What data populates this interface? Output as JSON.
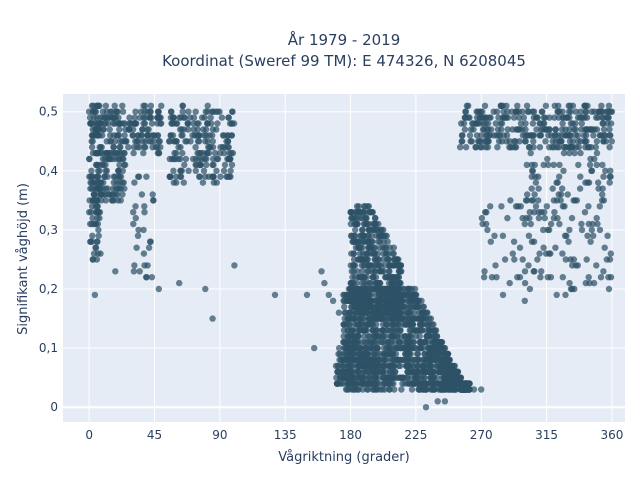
{
  "chart_data": {
    "type": "scatter",
    "title": "År 1979 - 2019",
    "subtitle": "Koordinat (Sweref 99 TM): E 474326, N 6208045",
    "xlabel": "Vågriktning (grader)",
    "ylabel": "Signifikant våghöjd (m)",
    "xlim": [
      -18,
      369
    ],
    "ylim": [
      -0.025,
      0.53
    ],
    "x_ticks": [
      0,
      45,
      90,
      135,
      180,
      225,
      270,
      315,
      360
    ],
    "x_tick_labels": [
      "0",
      "45",
      "90",
      "135",
      "180",
      "225",
      "270",
      "315",
      "360"
    ],
    "y_ticks": [
      0,
      0.1,
      0.2,
      0.3,
      0.4,
      0.5
    ],
    "y_tick_labels": [
      "0",
      "0,1",
      "0,2",
      "0,3",
      "0,4",
      "0,5"
    ],
    "grid": true,
    "marker_color": "#2e5266",
    "background_color": "#e5ecf6",
    "clusters": [
      {
        "x_range": [
          0,
          8
        ],
        "y_range": [
          0.25,
          0.51
        ],
        "n": 120
      },
      {
        "x_range": [
          5,
          25
        ],
        "y_range": [
          0.35,
          0.51
        ],
        "n": 160
      },
      {
        "x_range": [
          25,
          50
        ],
        "y_range": [
          0.43,
          0.51
        ],
        "n": 90
      },
      {
        "x_range": [
          55,
          100
        ],
        "y_range": [
          0.38,
          0.51
        ],
        "n": 200
      },
      {
        "x_range": [
          30,
          45
        ],
        "y_range": [
          0.22,
          0.4
        ],
        "n": 30
      },
      {
        "x_range": [
          255,
          360
        ],
        "y_range": [
          0.44,
          0.51
        ],
        "n": 320
      },
      {
        "x_range": [
          300,
          360
        ],
        "y_range": [
          0.2,
          0.44
        ],
        "n": 160
      },
      {
        "x_range": [
          270,
          300
        ],
        "y_range": [
          0.2,
          0.35
        ],
        "n": 30
      },
      {
        "x_range": [
          175,
          262
        ],
        "y_range": [
          0.03,
          0.2
        ],
        "n": 1400
      },
      {
        "x_range": [
          180,
          215
        ],
        "y_range": [
          0.15,
          0.34
        ],
        "n": 500
      },
      {
        "x_range": [
          170,
          200
        ],
        "y_range": [
          0.03,
          0.1
        ],
        "n": 150
      }
    ],
    "outliers": [
      {
        "x": 4,
        "y": 0.19
      },
      {
        "x": 85,
        "y": 0.15
      },
      {
        "x": 100,
        "y": 0.24
      },
      {
        "x": 128,
        "y": 0.19
      },
      {
        "x": 150,
        "y": 0.19
      },
      {
        "x": 155,
        "y": 0.1
      },
      {
        "x": 160,
        "y": 0.23
      },
      {
        "x": 162,
        "y": 0.21
      },
      {
        "x": 165,
        "y": 0.19
      },
      {
        "x": 168,
        "y": 0.18
      },
      {
        "x": 172,
        "y": 0.16
      },
      {
        "x": 48,
        "y": 0.2
      },
      {
        "x": 62,
        "y": 0.21
      },
      {
        "x": 80,
        "y": 0.2
      },
      {
        "x": 18,
        "y": 0.23
      },
      {
        "x": 272,
        "y": 0.22
      },
      {
        "x": 285,
        "y": 0.19
      },
      {
        "x": 300,
        "y": 0.18
      },
      {
        "x": 322,
        "y": 0.19
      },
      {
        "x": 328,
        "y": 0.19
      },
      {
        "x": 358,
        "y": 0.2
      },
      {
        "x": 342,
        "y": 0.21
      },
      {
        "x": 355,
        "y": 0.27
      },
      {
        "x": 357,
        "y": 0.29
      },
      {
        "x": 240,
        "y": 0.01
      },
      {
        "x": 245,
        "y": 0.01
      },
      {
        "x": 232,
        "y": 0.0
      },
      {
        "x": 270,
        "y": 0.03
      },
      {
        "x": 265,
        "y": 0.03
      },
      {
        "x": 0,
        "y": 0.5
      },
      {
        "x": 2,
        "y": 0.51
      },
      {
        "x": 360,
        "y": 0.5
      },
      {
        "x": 358,
        "y": 0.51
      }
    ]
  }
}
